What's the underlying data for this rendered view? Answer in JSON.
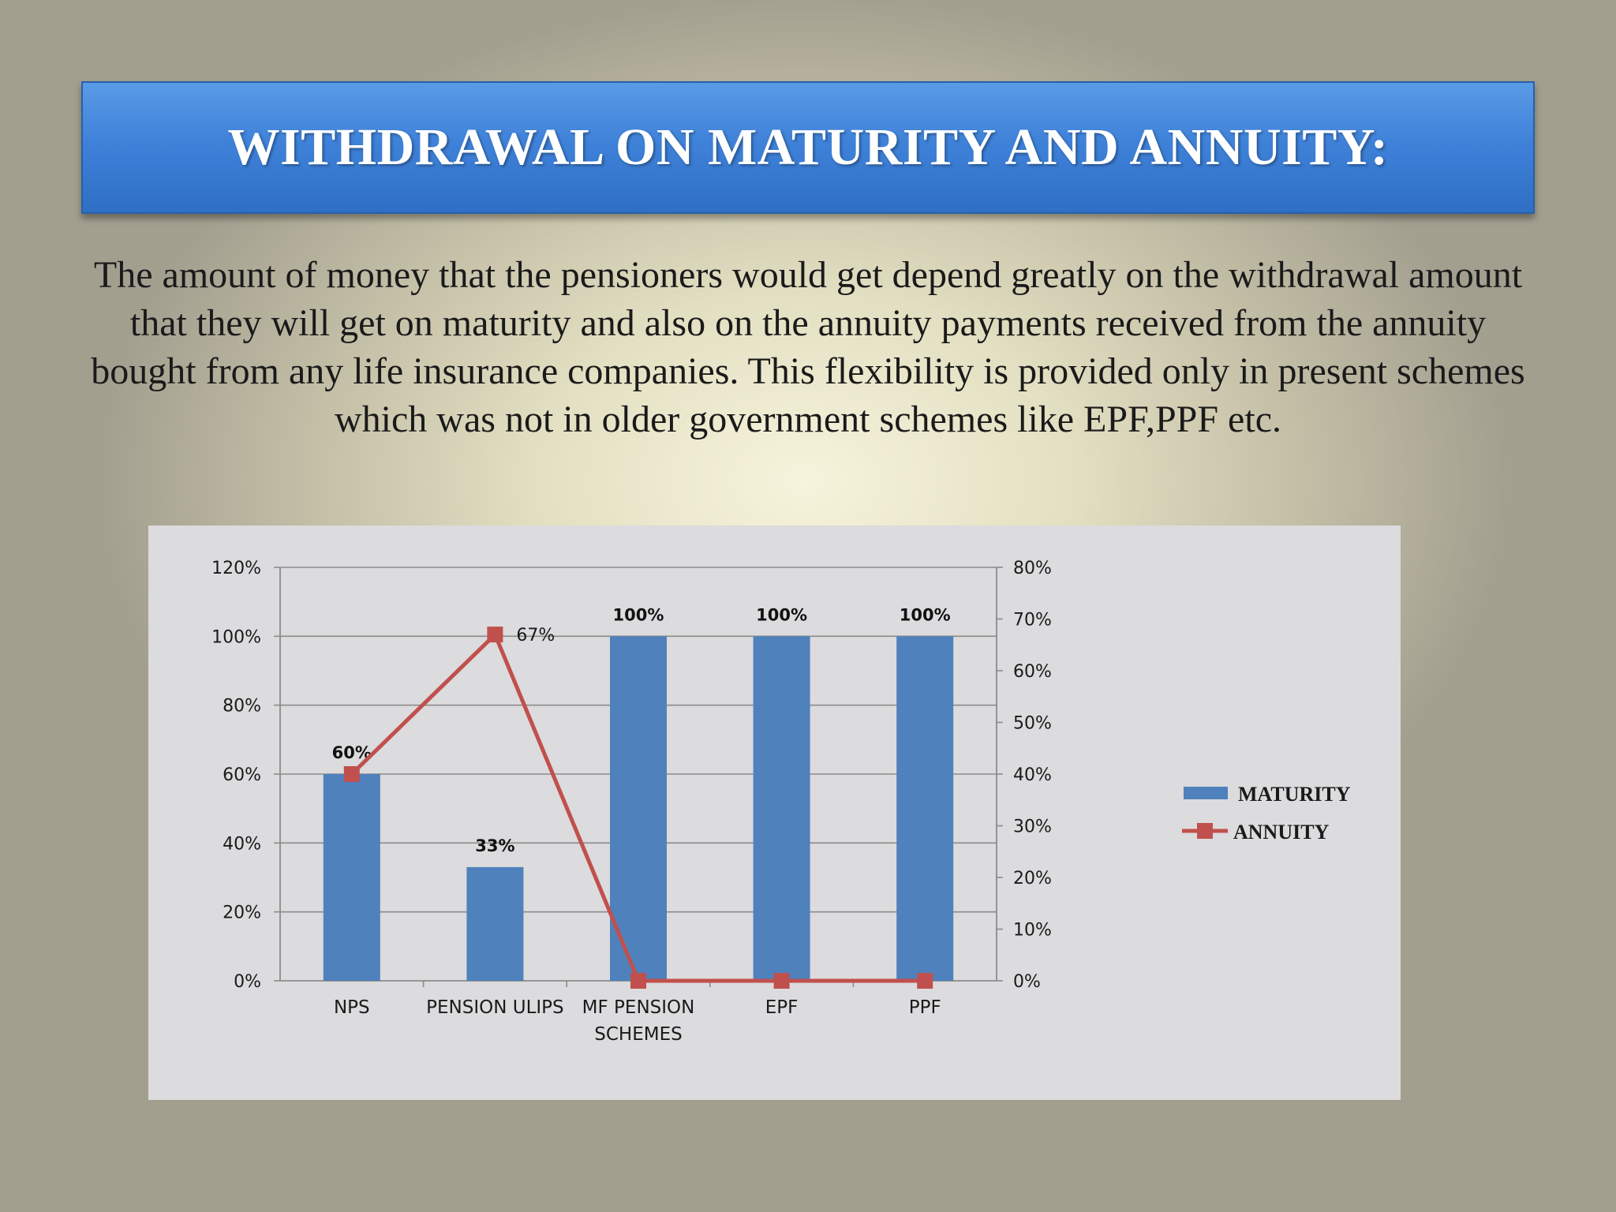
{
  "slide": {
    "title": "WITHDRAWAL ON MATURITY AND ANNUITY:",
    "body": "The amount of money that the pensioners would get depend greatly on the withdrawal amount that they will get on maturity and also on the annuity payments received from the annuity bought from any life insurance companies. This flexibility is provided only in present schemes which was not in older government schemes like EPF,PPF etc."
  },
  "chart_data": {
    "type": "bar",
    "categories": [
      "NPS",
      "PENSION ULIPS",
      "MF PENSION SCHEMES",
      "EPF",
      "PPF"
    ],
    "series": [
      {
        "name": "MATURITY",
        "chart": "bar",
        "axis": "left",
        "color": "#4f81bd",
        "values": [
          60,
          33,
          100,
          100,
          100
        ],
        "labels": [
          "60%",
          "33%",
          "100%",
          "100%",
          "100%"
        ]
      },
      {
        "name": "ANNUITY",
        "chart": "line",
        "axis": "right",
        "color": "#c0504d",
        "values": [
          40,
          67,
          0,
          0,
          0
        ],
        "labels": [
          "",
          "67%",
          "",
          "",
          ""
        ]
      }
    ],
    "y_left": {
      "min": 0,
      "max": 120,
      "ticks": [
        "0%",
        "20%",
        "40%",
        "60%",
        "80%",
        "100%",
        "120%"
      ]
    },
    "y_right": {
      "min": 0,
      "max": 80,
      "ticks": [
        "0%",
        "10%",
        "20%",
        "30%",
        "40%",
        "50%",
        "60%",
        "70%",
        "80%"
      ]
    },
    "grid": true,
    "legend": "right"
  }
}
